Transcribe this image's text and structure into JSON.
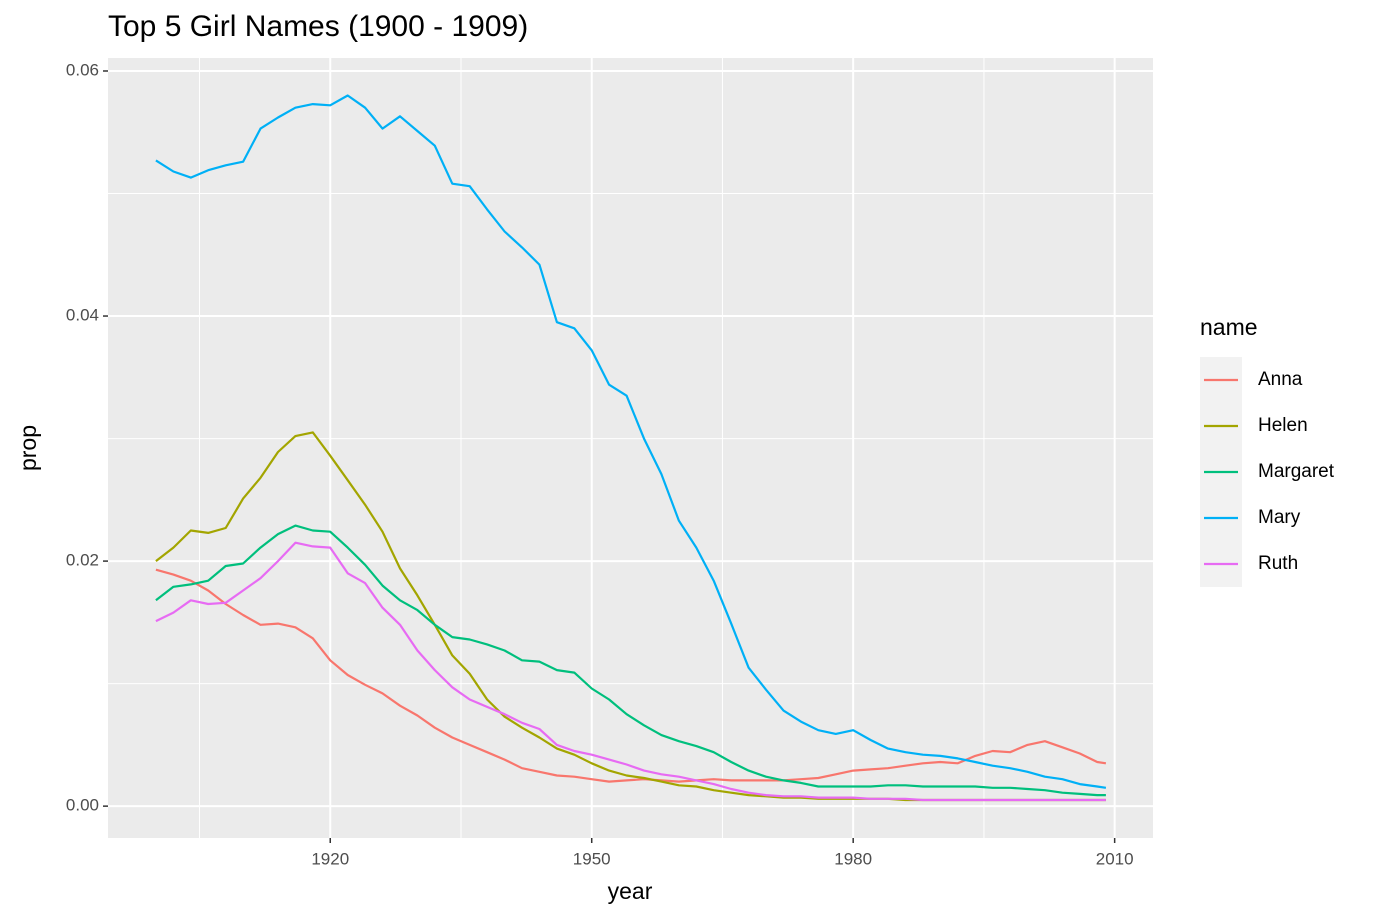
{
  "chart_data": {
    "type": "line",
    "title": "Top 5 Girl Names (1900 - 1909)",
    "x_label": "year",
    "y_label": "prop",
    "legend_title": "name",
    "x": [
      1900,
      1902,
      1904,
      1906,
      1908,
      1910,
      1912,
      1914,
      1916,
      1918,
      1920,
      1922,
      1924,
      1926,
      1928,
      1930,
      1932,
      1934,
      1936,
      1938,
      1940,
      1942,
      1944,
      1946,
      1948,
      1950,
      1952,
      1954,
      1956,
      1958,
      1960,
      1962,
      1964,
      1966,
      1968,
      1970,
      1972,
      1974,
      1976,
      1978,
      1980,
      1982,
      1984,
      1986,
      1988,
      1990,
      1992,
      1994,
      1996,
      1998,
      2000,
      2002,
      2004,
      2006,
      2008,
      2009
    ],
    "series": [
      {
        "name": "Anna",
        "color": "#F8766D",
        "values": [
          0.0193,
          0.0189,
          0.0184,
          0.0176,
          0.0165,
          0.0156,
          0.0148,
          0.0149,
          0.0146,
          0.0137,
          0.0119,
          0.0107,
          0.0099,
          0.0092,
          0.0082,
          0.0074,
          0.0064,
          0.0056,
          0.005,
          0.0044,
          0.0038,
          0.0031,
          0.0028,
          0.0025,
          0.0024,
          0.0022,
          0.002,
          0.0021,
          0.0022,
          0.0021,
          0.002,
          0.0021,
          0.0022,
          0.0021,
          0.0021,
          0.0021,
          0.0021,
          0.0022,
          0.0023,
          0.0026,
          0.0029,
          0.003,
          0.0031,
          0.0033,
          0.0035,
          0.0036,
          0.0035,
          0.0041,
          0.0045,
          0.0044,
          0.005,
          0.0053,
          0.0048,
          0.0043,
          0.0036,
          0.0035
        ]
      },
      {
        "name": "Helen",
        "color": "#A3A500",
        "values": [
          0.02,
          0.0211,
          0.0225,
          0.0223,
          0.0227,
          0.0251,
          0.0268,
          0.0289,
          0.0302,
          0.0305,
          0.0286,
          0.0266,
          0.0246,
          0.0224,
          0.0194,
          0.0172,
          0.0148,
          0.0123,
          0.0108,
          0.0087,
          0.0073,
          0.0064,
          0.0056,
          0.0047,
          0.0042,
          0.0035,
          0.0029,
          0.0025,
          0.0023,
          0.002,
          0.0017,
          0.0016,
          0.0013,
          0.0011,
          0.0009,
          0.0008,
          0.0007,
          0.0007,
          0.0006,
          0.0006,
          0.0006,
          0.0006,
          0.0006,
          0.0005,
          0.0005,
          0.0005,
          0.0005,
          0.0005,
          0.0005,
          0.0005,
          0.0005,
          0.0005,
          0.0005,
          0.0005,
          0.0005,
          0.0005
        ]
      },
      {
        "name": "Margaret",
        "color": "#00BF7D",
        "values": [
          0.0168,
          0.0179,
          0.0181,
          0.0184,
          0.0196,
          0.0198,
          0.0211,
          0.0222,
          0.0229,
          0.0225,
          0.0224,
          0.0211,
          0.0197,
          0.018,
          0.0168,
          0.016,
          0.0148,
          0.0138,
          0.0136,
          0.0132,
          0.0127,
          0.0119,
          0.0118,
          0.0111,
          0.0109,
          0.0096,
          0.0087,
          0.0075,
          0.0066,
          0.0058,
          0.0053,
          0.0049,
          0.0044,
          0.0036,
          0.0029,
          0.0024,
          0.0021,
          0.0019,
          0.0016,
          0.0016,
          0.0016,
          0.0016,
          0.0017,
          0.0017,
          0.0016,
          0.0016,
          0.0016,
          0.0016,
          0.0015,
          0.0015,
          0.0014,
          0.0013,
          0.0011,
          0.001,
          0.0009,
          0.0009
        ]
      },
      {
        "name": "Mary",
        "color": "#00B0F6",
        "values": [
          0.0527,
          0.0518,
          0.0513,
          0.0519,
          0.0523,
          0.0526,
          0.0553,
          0.0562,
          0.057,
          0.0573,
          0.0572,
          0.058,
          0.057,
          0.0553,
          0.0563,
          0.0551,
          0.0539,
          0.0508,
          0.0506,
          0.0487,
          0.0469,
          0.0456,
          0.0442,
          0.0395,
          0.039,
          0.0372,
          0.0344,
          0.0335,
          0.03,
          0.0271,
          0.0233,
          0.0211,
          0.0184,
          0.0149,
          0.0113,
          0.0095,
          0.0078,
          0.0069,
          0.0062,
          0.0059,
          0.0062,
          0.0054,
          0.0047,
          0.0044,
          0.0042,
          0.0041,
          0.0039,
          0.0036,
          0.0033,
          0.0031,
          0.0028,
          0.0024,
          0.0022,
          0.0018,
          0.0016,
          0.0015
        ]
      },
      {
        "name": "Ruth",
        "color": "#E76BF3",
        "values": [
          0.0151,
          0.0158,
          0.0168,
          0.0165,
          0.0166,
          0.0176,
          0.0186,
          0.02,
          0.0215,
          0.0212,
          0.0211,
          0.019,
          0.0182,
          0.0162,
          0.0148,
          0.0127,
          0.0111,
          0.0097,
          0.0087,
          0.0081,
          0.0075,
          0.0068,
          0.0063,
          0.005,
          0.0045,
          0.0042,
          0.0038,
          0.0034,
          0.0029,
          0.0026,
          0.0024,
          0.0021,
          0.0018,
          0.0014,
          0.0011,
          0.0009,
          0.0008,
          0.0008,
          0.0007,
          0.0007,
          0.0007,
          0.0006,
          0.0006,
          0.0006,
          0.0005,
          0.0005,
          0.0005,
          0.0005,
          0.0005,
          0.0005,
          0.0005,
          0.0005,
          0.0005,
          0.0005,
          0.0005,
          0.0005
        ]
      }
    ],
    "xlim": [
      1894.5,
      2014.4
    ],
    "ylim": [
      -0.0026,
      0.06106
    ],
    "xticks": [
      1920,
      1950,
      1980,
      2010
    ],
    "yticks": [
      {
        "value": 0,
        "label": "0.00"
      },
      {
        "value": 0.02,
        "label": "0.02"
      },
      {
        "value": 0.04,
        "label": "0.04"
      },
      {
        "value": 0.06,
        "label": "0.06"
      }
    ],
    "grid": true,
    "legend": "right"
  }
}
